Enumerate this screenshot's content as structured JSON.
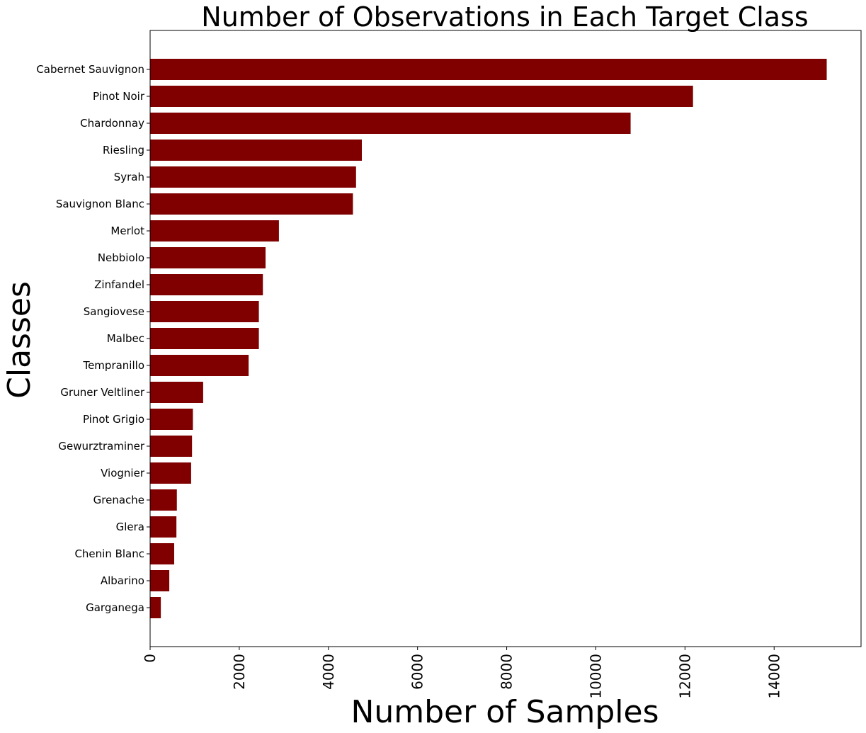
{
  "chart_data": {
    "type": "bar",
    "orientation": "horizontal",
    "title": "Number of Observations in Each Target Class",
    "xlabel": "Number of Samples",
    "ylabel": "Classes",
    "bar_color": "#800000",
    "grid": false,
    "xlim": [
      0,
      15950
    ],
    "xticks": [
      0,
      2000,
      4000,
      6000,
      8000,
      10000,
      12000,
      14000
    ],
    "xtick_labels": [
      "0",
      "2000",
      "4000",
      "6000",
      "8000",
      "10000",
      "12000",
      "14000"
    ],
    "categories": [
      "Cabernet Sauvignon",
      "Pinot Noir",
      "Chardonnay",
      "Riesling",
      "Syrah",
      "Sauvignon Blanc",
      "Merlot",
      "Nebbiolo",
      "Zinfandel",
      "Sangiovese",
      "Malbec",
      "Tempranillo",
      "Gruner Veltliner",
      "Pinot Grigio",
      "Gewurztraminer",
      "Viognier",
      "Grenache",
      "Glera",
      "Chenin Blanc",
      "Albarino",
      "Garganega"
    ],
    "values": [
      15180,
      12180,
      10780,
      4750,
      4620,
      4550,
      2890,
      2590,
      2530,
      2440,
      2440,
      2210,
      1190,
      960,
      940,
      920,
      600,
      590,
      540,
      430,
      240
    ]
  }
}
